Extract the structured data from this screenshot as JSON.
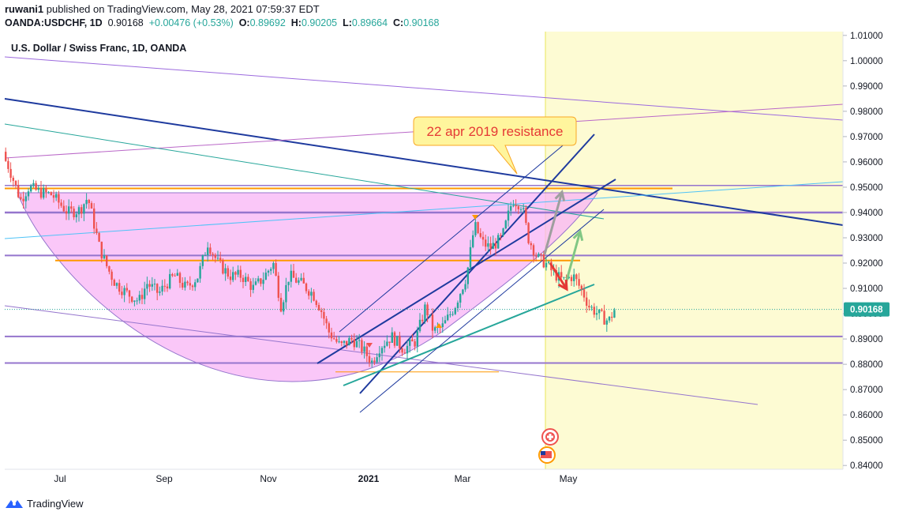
{
  "header": {
    "publisher": "ruwani1",
    "published_text": "published on TradingView.com, May 28, 2021 07:59:37 EDT",
    "symbol": "OANDA:USDCHF, 1D",
    "last": "0.90168",
    "change": "+0.00476 (+0.53%)",
    "o_label": "O:",
    "o_val": "0.89692",
    "h_label": "H:",
    "h_val": "0.90205",
    "l_label": "L:",
    "l_val": "0.89664",
    "c_label": "C:",
    "c_val": "0.90168"
  },
  "footer": {
    "brand": "TradingView"
  },
  "colors": {
    "up": "#26a69a",
    "down": "#ef5350",
    "cup_fill": "#f8b4f6",
    "blue_line": "#1e3a9e",
    "purple_line": "#9575cd",
    "orange_line": "#ff9800",
    "teal_line": "#26a69a",
    "highlight": "#fdfbd3",
    "price_tag": "#26a69a"
  },
  "chart_data": {
    "type": "candlestick",
    "title": "U.S. Dollar / Swiss Franc, 1D, OANDA",
    "y_axis": {
      "range": [
        0.8385,
        1.0115
      ],
      "ticks": [
        "1.01000",
        "1.00000",
        "0.99000",
        "0.98000",
        "0.97000",
        "0.96000",
        "0.95000",
        "0.94000",
        "0.93000",
        "0.92000",
        "0.91000",
        "0.90000",
        "0.89000",
        "0.88000",
        "0.87000",
        "0.86000",
        "0.85000",
        "0.84000"
      ],
      "current_price_label": "0.90168"
    },
    "x_axis": {
      "ticks": [
        "Jul",
        "Sep",
        "Nov",
        "2021",
        "Mar",
        "May"
      ]
    },
    "price_path": [
      [
        0,
        0.964
      ],
      [
        10,
        0.958
      ],
      [
        20,
        0.949
      ],
      [
        25,
        0.945
      ],
      [
        35,
        0.95
      ],
      [
        50,
        0.948
      ],
      [
        65,
        0.947
      ],
      [
        70,
        0.945
      ],
      [
        85,
        0.94
      ],
      [
        100,
        0.941
      ],
      [
        110,
        0.946
      ],
      [
        125,
        0.926
      ],
      [
        135,
        0.918
      ],
      [
        145,
        0.912
      ],
      [
        160,
        0.908
      ],
      [
        175,
        0.905
      ],
      [
        185,
        0.912
      ],
      [
        200,
        0.908
      ],
      [
        210,
        0.912
      ],
      [
        220,
        0.915
      ],
      [
        235,
        0.91
      ],
      [
        250,
        0.915
      ],
      [
        262,
        0.928
      ],
      [
        275,
        0.92
      ],
      [
        290,
        0.915
      ],
      [
        305,
        0.915
      ],
      [
        320,
        0.91
      ],
      [
        332,
        0.914
      ],
      [
        345,
        0.92
      ],
      [
        355,
        0.903
      ],
      [
        365,
        0.915
      ],
      [
        380,
        0.912
      ],
      [
        395,
        0.908
      ],
      [
        405,
        0.902
      ],
      [
        415,
        0.893
      ],
      [
        430,
        0.887
      ],
      [
        445,
        0.89
      ],
      [
        458,
        0.886
      ],
      [
        470,
        0.881
      ],
      [
        480,
        0.887
      ],
      [
        495,
        0.891
      ],
      [
        510,
        0.886
      ],
      [
        525,
        0.889
      ],
      [
        538,
        0.903
      ],
      [
        548,
        0.893
      ],
      [
        560,
        0.895
      ],
      [
        575,
        0.903
      ],
      [
        590,
        0.915
      ],
      [
        600,
        0.935
      ],
      [
        610,
        0.928
      ],
      [
        620,
        0.926
      ],
      [
        635,
        0.93
      ],
      [
        648,
        0.945
      ],
      [
        660,
        0.943
      ],
      [
        668,
        0.93
      ],
      [
        680,
        0.922
      ],
      [
        690,
        0.92
      ],
      [
        700,
        0.916
      ],
      [
        712,
        0.913
      ],
      [
        725,
        0.915
      ],
      [
        738,
        0.908
      ],
      [
        745,
        0.903
      ],
      [
        760,
        0.899
      ],
      [
        770,
        0.897
      ],
      [
        778,
        0.902
      ]
    ],
    "annotations": [
      {
        "type": "callout",
        "text": "22 apr 2019 resistance"
      }
    ]
  }
}
